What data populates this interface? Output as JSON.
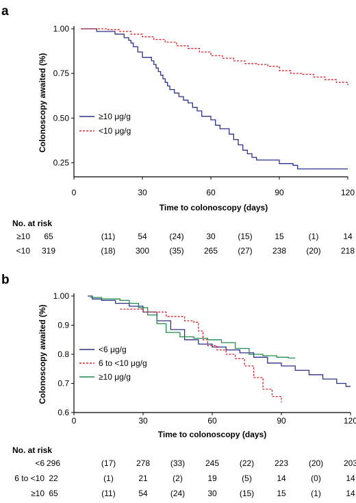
{
  "chart_data": [
    {
      "panel": "a",
      "type": "line",
      "xlabel": "Time to colonoscopy (days)",
      "ylabel": "Colonoscopy awaited (%)",
      "xlim": [
        0,
        120
      ],
      "ylim": [
        0.125,
        1.0
      ],
      "x_ticks": [
        0,
        30,
        60,
        90,
        120
      ],
      "y_ticks": [
        1.0,
        0.75,
        0.5,
        0.25
      ],
      "y_tick_labels": [
        "1.00",
        "0.75",
        "0.50",
        "0.25"
      ],
      "legend": "middle-left",
      "series": [
        {
          "name": "≥10 μg/g",
          "color": "#2a2f8a",
          "style": "solid",
          "x": [
            3,
            10,
            18,
            22,
            24,
            25,
            26,
            28,
            30,
            34,
            35,
            36,
            37,
            38,
            39,
            40,
            41,
            42,
            44,
            46,
            48,
            50,
            52,
            54,
            56,
            60,
            62,
            64,
            68,
            70,
            72,
            74,
            76,
            78,
            80,
            84,
            90,
            96,
            98,
            120
          ],
          "y": [
            1.0,
            0.985,
            0.97,
            0.95,
            0.935,
            0.92,
            0.9,
            0.87,
            0.84,
            0.82,
            0.8,
            0.78,
            0.76,
            0.74,
            0.72,
            0.7,
            0.68,
            0.66,
            0.64,
            0.62,
            0.6,
            0.585,
            0.56,
            0.54,
            0.51,
            0.49,
            0.46,
            0.44,
            0.41,
            0.38,
            0.35,
            0.32,
            0.3,
            0.28,
            0.265,
            0.265,
            0.245,
            0.235,
            0.215,
            0.215
          ]
        },
        {
          "name": "<10 μg/g",
          "color": "#d8202a",
          "style": "dashed",
          "x": [
            3,
            10,
            15,
            20,
            25,
            30,
            35,
            40,
            45,
            50,
            55,
            60,
            65,
            70,
            75,
            80,
            85,
            90,
            95,
            100,
            105,
            110,
            115,
            120
          ],
          "y": [
            1.0,
            1.0,
            0.995,
            0.985,
            0.97,
            0.955,
            0.94,
            0.925,
            0.905,
            0.89,
            0.87,
            0.85,
            0.835,
            0.82,
            0.805,
            0.8,
            0.79,
            0.765,
            0.75,
            0.745,
            0.73,
            0.715,
            0.7,
            0.685
          ]
        }
      ],
      "risk_table": {
        "header": "No. at risk",
        "rows": [
          {
            "label": "≥10",
            "values": [
              "65",
              "(11)",
              "54",
              "(24)",
              "30",
              "(15)",
              "15",
              "(1)",
              "14"
            ]
          },
          {
            "label": "<10",
            "values": [
              "319",
              "(18)",
              "300",
              "(35)",
              "265",
              "(27)",
              "238",
              "(20)",
              "218"
            ]
          }
        ]
      }
    },
    {
      "panel": "b",
      "type": "line",
      "xlabel": "Time to colonoscopy (days)",
      "ylabel": "Colonoscopy awaited (%)",
      "xlim": [
        0,
        120
      ],
      "ylim": [
        0.6,
        1.0
      ],
      "x_ticks": [
        0,
        30,
        60,
        90,
        120
      ],
      "y_ticks": [
        1.0,
        0.9,
        0.8,
        0.7,
        0.6
      ],
      "y_tick_labels": [
        "1.00",
        "0.9",
        "0.8",
        "0.7",
        "0.6"
      ],
      "legend": "lower-left",
      "series": [
        {
          "name": "<6 μg/g",
          "color": "#2a2f8a",
          "style": "solid",
          "x": [
            6,
            8,
            12,
            18,
            24,
            30,
            36,
            42,
            48,
            54,
            60,
            66,
            72,
            78,
            84,
            90,
            96,
            102,
            108,
            114,
            118,
            120
          ],
          "y": [
            1.0,
            0.99,
            0.985,
            0.975,
            0.965,
            0.945,
            0.915,
            0.885,
            0.85,
            0.835,
            0.825,
            0.815,
            0.805,
            0.79,
            0.77,
            0.76,
            0.745,
            0.73,
            0.715,
            0.7,
            0.69,
            0.69
          ]
        },
        {
          "name": "6 to <10 μg/g",
          "color": "#d8202a",
          "style": "dashed",
          "x": [
            20,
            30,
            40,
            48,
            52,
            54,
            56,
            58,
            62,
            66,
            70,
            74,
            78,
            82,
            86,
            90
          ],
          "y": [
            0.955,
            0.945,
            0.93,
            0.915,
            0.91,
            0.88,
            0.85,
            0.83,
            0.815,
            0.8,
            0.785,
            0.76,
            0.72,
            0.68,
            0.655,
            0.635
          ]
        },
        {
          "name": "≥10 μg/g",
          "color": "#1f8a4c",
          "style": "solid",
          "x": [
            7,
            12,
            20,
            24,
            28,
            32,
            36,
            40,
            46,
            52,
            58,
            64,
            70,
            76,
            82,
            88,
            93,
            96
          ],
          "y": [
            0.995,
            0.99,
            0.985,
            0.975,
            0.96,
            0.935,
            0.905,
            0.875,
            0.86,
            0.855,
            0.85,
            0.84,
            0.82,
            0.8,
            0.795,
            0.79,
            0.787,
            0.787
          ]
        }
      ],
      "risk_table": {
        "header": "No. at risk",
        "rows": [
          {
            "label": "<6",
            "values": [
              "296",
              "(17)",
              "278",
              "(33)",
              "245",
              "(22)",
              "223",
              "(20)",
              "203"
            ]
          },
          {
            "label": "6 to <10",
            "values": [
              "22",
              "(1)",
              "21",
              "(2)",
              "19",
              "(5)",
              "14",
              "(0)",
              "14"
            ]
          },
          {
            "label": "≥10",
            "values": [
              "65",
              "(11)",
              "54",
              "(24)",
              "30",
              "(15)",
              "15",
              "(1)",
              "14"
            ]
          }
        ]
      }
    }
  ]
}
